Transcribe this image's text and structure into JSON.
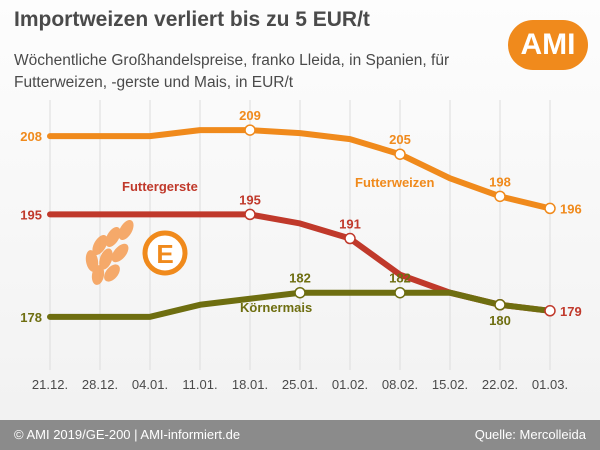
{
  "header": {
    "title": "Importweizen verliert bis zu 5 EUR/t",
    "subtitle": "Wöchentliche Großhandelspreise, franko Lleida, in Spanien, für Futterweizen, -gerste und Mais, in EUR/t",
    "logo": "AMI"
  },
  "footer": {
    "left": "© AMI 2019/GE-200 | AMI-informiert.de",
    "right": "Quelle: Mercolleida"
  },
  "chart_data": {
    "type": "line",
    "title": "Importweizen verliert bis zu 5 EUR/t",
    "subtitle": "Wöchentliche Großhandelspreise, franko Lleida, in Spanien, für Futterweizen, -gerste und Mais, in EUR/t",
    "x": [
      "21.12.",
      "28.12.",
      "04.01.",
      "11.01.",
      "18.01.",
      "25.01.",
      "01.02.",
      "08.02.",
      "15.02.",
      "22.02.",
      "01.03."
    ],
    "ylim": [
      170,
      214
    ],
    "grid": true,
    "series": [
      {
        "name": "Futterweizen",
        "color": "#f08a1c",
        "values": [
          208,
          208,
          208,
          209,
          209,
          208.5,
          207.5,
          205,
          201,
          198,
          196
        ],
        "labels": [
          {
            "index": 0,
            "text": "208",
            "side": "left"
          },
          {
            "index": 4,
            "text": "209",
            "side": "above"
          },
          {
            "index": 7,
            "text": "205",
            "side": "above"
          },
          {
            "index": 9,
            "text": "198",
            "side": "above"
          },
          {
            "index": 10,
            "text": "196",
            "side": "right"
          }
        ],
        "markers": [
          4,
          7,
          9,
          10
        ]
      },
      {
        "name": "Futtergerste",
        "color": "#c0392b",
        "values": [
          195,
          195,
          195,
          195,
          195,
          193.5,
          191,
          185,
          182,
          180,
          179
        ],
        "labels": [
          {
            "index": 0,
            "text": "195",
            "side": "left"
          },
          {
            "index": 4,
            "text": "195",
            "side": "above"
          },
          {
            "index": 6,
            "text": "191",
            "side": "above"
          },
          {
            "index": 10,
            "text": "179",
            "side": "right"
          }
        ],
        "markers": [
          4,
          6,
          9,
          10
        ]
      },
      {
        "name": "Körnermais",
        "color": "#6e6e10",
        "values": [
          178,
          178,
          178,
          180,
          181,
          182,
          182,
          182,
          182,
          180,
          179
        ],
        "labels": [
          {
            "index": 0,
            "text": "178",
            "side": "left"
          },
          {
            "index": 5,
            "text": "182",
            "side": "above"
          },
          {
            "index": 7,
            "text": "182",
            "side": "above"
          },
          {
            "index": 9,
            "text": "180",
            "side": "below"
          }
        ],
        "markers": [
          5,
          7,
          9
        ]
      }
    ],
    "legend_labels": [
      {
        "series": 0,
        "text": "Futterweizen"
      },
      {
        "series": 1,
        "text": "Futtergerste"
      },
      {
        "series": 2,
        "text": "Körnermais"
      }
    ]
  },
  "decor": {
    "wheat_icon": "wheat-icon",
    "country_badge": "E"
  }
}
